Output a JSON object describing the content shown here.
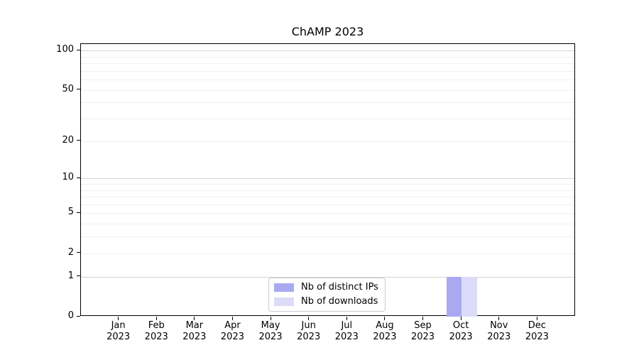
{
  "title": "ChAMP 2023",
  "chart_data": {
    "type": "bar",
    "title": "ChAMP 2023",
    "categories": [
      {
        "month": "Jan",
        "year": "2023"
      },
      {
        "month": "Feb",
        "year": "2023"
      },
      {
        "month": "Mar",
        "year": "2023"
      },
      {
        "month": "Apr",
        "year": "2023"
      },
      {
        "month": "May",
        "year": "2023"
      },
      {
        "month": "Jun",
        "year": "2023"
      },
      {
        "month": "Jul",
        "year": "2023"
      },
      {
        "month": "Aug",
        "year": "2023"
      },
      {
        "month": "Sep",
        "year": "2023"
      },
      {
        "month": "Oct",
        "year": "2023"
      },
      {
        "month": "Nov",
        "year": "2023"
      },
      {
        "month": "Dec",
        "year": "2023"
      }
    ],
    "series": [
      {
        "name": "Nb of distinct IPs",
        "color": "#a9a9f2",
        "values": [
          0,
          0,
          0,
          0,
          0,
          0,
          0,
          0,
          0,
          1,
          0,
          0
        ]
      },
      {
        "name": "Nb of downloads",
        "color": "#dcdcf8",
        "values": [
          0,
          0,
          0,
          0,
          0,
          0,
          0,
          0,
          0,
          1,
          0,
          0
        ]
      }
    ],
    "xlabel": "",
    "ylabel": "",
    "y_scale": "log10(1+v)",
    "ylim": [
      0,
      112
    ],
    "y_ticks": [
      0,
      1,
      2,
      5,
      10,
      20,
      50,
      100
    ],
    "y_major_gridlines": [
      1,
      10,
      100
    ],
    "y_minor_gridlines": [
      2,
      3,
      4,
      5,
      6,
      7,
      8,
      9,
      20,
      30,
      40,
      50,
      60,
      70,
      80,
      90
    ],
    "grid": "horizontal",
    "legend_position": "inside bottom-center"
  },
  "colors": {
    "background": "#ffffff",
    "axis": "#000000",
    "major_grid": "#d4d4d4",
    "minor_grid": "#efefef",
    "legend_border": "#cccccc",
    "text": "#000000"
  }
}
